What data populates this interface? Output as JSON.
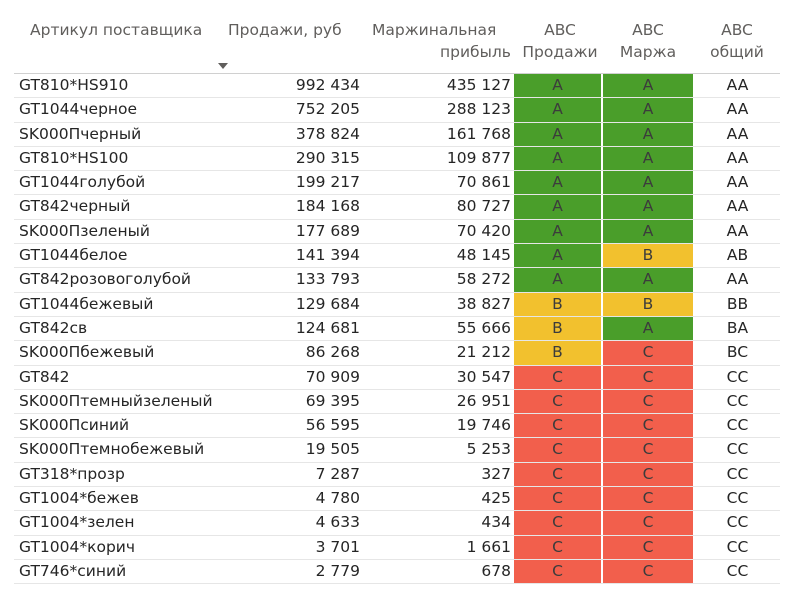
{
  "table": {
    "headers": {
      "article": "Артикул поставщика",
      "sales": "Продажи, руб",
      "margin_line1": "Маржинальная",
      "margin_line2": "прибыль",
      "abc_sales_line1": "ABC",
      "abc_sales_line2": "Продажи",
      "abc_margin_line1": "ABC",
      "abc_margin_line2": "Маржа",
      "abc_total_line1": "ABC",
      "abc_total_line2": "общий"
    },
    "sort_icon": "sort-descending-caret",
    "grade_colors": {
      "A": "#4a9e2a",
      "B": "#f2c12e",
      "C": "#f25f4c"
    },
    "rows": [
      {
        "article": "GT810*HS910",
        "sales": "992 434",
        "margin": "435 127",
        "abc_sales": "A",
        "abc_margin": "A",
        "abc_total": "AA"
      },
      {
        "article": "GT1044черное",
        "sales": "752 205",
        "margin": "288 123",
        "abc_sales": "A",
        "abc_margin": "A",
        "abc_total": "AA"
      },
      {
        "article": "SK000Пчерный",
        "sales": "378 824",
        "margin": "161 768",
        "abc_sales": "A",
        "abc_margin": "A",
        "abc_total": "AA"
      },
      {
        "article": "GT810*HS100",
        "sales": "290 315",
        "margin": "109 877",
        "abc_sales": "A",
        "abc_margin": "A",
        "abc_total": "AA"
      },
      {
        "article": "GT1044голубой",
        "sales": "199 217",
        "margin": "70 861",
        "abc_sales": "A",
        "abc_margin": "A",
        "abc_total": "AA"
      },
      {
        "article": "GT842черный",
        "sales": "184 168",
        "margin": "80 727",
        "abc_sales": "A",
        "abc_margin": "A",
        "abc_total": "AA"
      },
      {
        "article": "SK000Пзеленый",
        "sales": "177 689",
        "margin": "70 420",
        "abc_sales": "A",
        "abc_margin": "A",
        "abc_total": "AA"
      },
      {
        "article": "GT1044белое",
        "sales": "141 394",
        "margin": "48 145",
        "abc_sales": "A",
        "abc_margin": "B",
        "abc_total": "AB"
      },
      {
        "article": "GT842розовоголубой",
        "sales": "133 793",
        "margin": "58 272",
        "abc_sales": "A",
        "abc_margin": "A",
        "abc_total": "AA"
      },
      {
        "article": "GT1044бежевый",
        "sales": "129 684",
        "margin": "38 827",
        "abc_sales": "B",
        "abc_margin": "B",
        "abc_total": "BB"
      },
      {
        "article": "GT842св",
        "sales": "124 681",
        "margin": "55 666",
        "abc_sales": "B",
        "abc_margin": "A",
        "abc_total": "BA"
      },
      {
        "article": "SK000Пбежевый",
        "sales": "86 268",
        "margin": "21 212",
        "abc_sales": "B",
        "abc_margin": "C",
        "abc_total": "BC"
      },
      {
        "article": "GT842",
        "sales": "70 909",
        "margin": "30 547",
        "abc_sales": "C",
        "abc_margin": "C",
        "abc_total": "CC"
      },
      {
        "article": "SK000Птемныйзеленый",
        "sales": "69 395",
        "margin": "26 951",
        "abc_sales": "C",
        "abc_margin": "C",
        "abc_total": "CC"
      },
      {
        "article": "SK000Псиний",
        "sales": "56 595",
        "margin": "19 746",
        "abc_sales": "C",
        "abc_margin": "C",
        "abc_total": "CC"
      },
      {
        "article": "SK000Птемнобежевый",
        "sales": "19 505",
        "margin": "5 253",
        "abc_sales": "C",
        "abc_margin": "C",
        "abc_total": "CC"
      },
      {
        "article": "GT318*прозр",
        "sales": "7 287",
        "margin": "327",
        "abc_sales": "C",
        "abc_margin": "C",
        "abc_total": "CC"
      },
      {
        "article": "GT1004*бежев",
        "sales": "4 780",
        "margin": "425",
        "abc_sales": "C",
        "abc_margin": "C",
        "abc_total": "CC"
      },
      {
        "article": "GT1004*зелен",
        "sales": "4 633",
        "margin": "434",
        "abc_sales": "C",
        "abc_margin": "C",
        "abc_total": "CC"
      },
      {
        "article": "GT1004*корич",
        "sales": "3 701",
        "margin": "1 661",
        "abc_sales": "C",
        "abc_margin": "C",
        "abc_total": "CC"
      },
      {
        "article": "GT746*синий",
        "sales": "2 779",
        "margin": "678",
        "abc_sales": "C",
        "abc_margin": "C",
        "abc_total": "CC"
      }
    ]
  }
}
